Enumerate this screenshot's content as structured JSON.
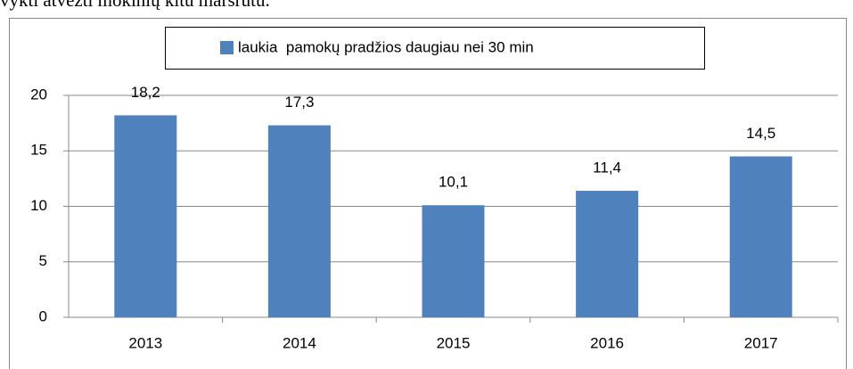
{
  "text_above": "vykti atvežti mokinių kitu maršrutu.",
  "chart_data": {
    "type": "bar",
    "categories": [
      "2013",
      "2014",
      "2015",
      "2016",
      "2017"
    ],
    "series": [
      {
        "name": "laukia  pamokų pradžios daugiau nei 30 min",
        "color": "#4f81bd",
        "values": [
          18.2,
          17.3,
          10.1,
          11.4,
          14.5
        ],
        "value_labels": [
          "18,2",
          "17,3",
          "10,1",
          "11,4",
          "14,5"
        ]
      }
    ],
    "ylim": [
      0,
      20
    ],
    "yticks": [
      0,
      5,
      10,
      15,
      20
    ],
    "grid": true,
    "legend": "top"
  }
}
